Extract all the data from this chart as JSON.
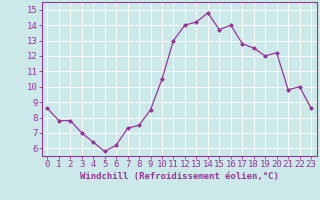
{
  "x": [
    0,
    1,
    2,
    3,
    4,
    5,
    6,
    7,
    8,
    9,
    10,
    11,
    12,
    13,
    14,
    15,
    16,
    17,
    18,
    19,
    20,
    21,
    22,
    23
  ],
  "y": [
    8.6,
    7.8,
    7.8,
    7.0,
    6.4,
    5.8,
    6.2,
    7.3,
    7.5,
    8.5,
    10.5,
    13.0,
    14.0,
    14.2,
    14.8,
    13.7,
    14.0,
    12.8,
    12.5,
    12.0,
    12.2,
    9.8,
    10.0,
    8.6
  ],
  "line_color": "#993399",
  "marker": "D",
  "marker_size": 2.0,
  "bg_color": "#cce9e9",
  "grid_color": "#ffffff",
  "xlabel": "Windchill (Refroidissement éolien,°C)",
  "ylabel_ticks": [
    6,
    7,
    8,
    9,
    10,
    11,
    12,
    13,
    14,
    15
  ],
  "xlim": [
    -0.5,
    23.5
  ],
  "ylim": [
    5.5,
    15.5
  ],
  "axis_color": "#993399",
  "tick_color": "#993399",
  "xlabel_fontsize": 6.5,
  "tick_fontsize": 6.5,
  "linewidth": 0.9
}
